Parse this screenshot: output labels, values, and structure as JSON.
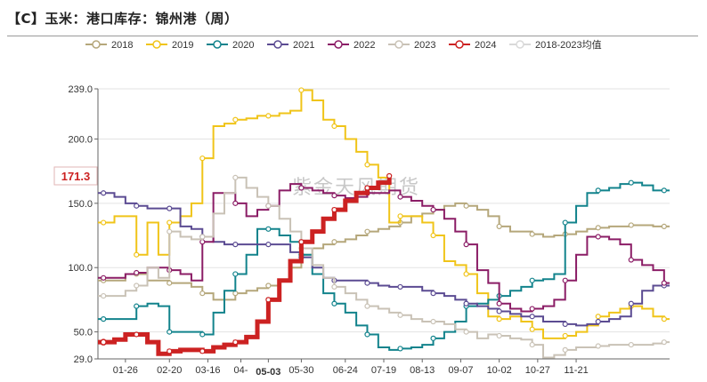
{
  "title": "【C】玉米：港口库存：锦州港（周）",
  "watermark": "紫金天风期货",
  "chart_data": {
    "type": "line",
    "title": "【C】玉米：港口库存：锦州港（周）",
    "ylim": [
      29,
      239
    ],
    "y_ticks": [
      "29.0",
      "50.0",
      "100.0",
      "150.0",
      "200.0",
      "239.0"
    ],
    "y_tick_values": [
      29,
      50,
      100,
      150,
      200,
      239
    ],
    "x_ticks": [
      "01-26",
      "02-20",
      "03-16",
      "04-",
      "05-03",
      "05-30",
      "06-24",
      "07-19",
      "08-13",
      "09-07",
      "10-02",
      "10-27",
      "11-21"
    ],
    "x_tick_weeks": [
      2,
      6,
      9.5,
      12.5,
      15,
      18,
      22,
      25.5,
      29,
      32.5,
      36,
      39.5,
      43
    ],
    "highlight_x_tick": "05-03",
    "n_weeks": 52,
    "callout": {
      "label": "171.3",
      "value": 171.3
    },
    "legend": [
      "2018",
      "2019",
      "2020",
      "2021",
      "2022",
      "2023",
      "2024",
      "2018-2023均值"
    ],
    "series": [
      {
        "name": "2018",
        "color": "#b5a77b",
        "values": [
          90,
          90,
          95,
          95,
          90,
          90,
          88,
          88,
          85,
          80,
          75,
          75,
          80,
          82,
          84,
          86,
          90,
          100,
          110,
          115,
          118,
          120,
          122,
          125,
          128,
          130,
          132,
          135,
          140,
          142,
          145,
          148,
          150,
          148,
          145,
          140,
          132,
          128,
          128,
          126,
          124,
          125,
          126,
          128,
          130,
          131,
          132,
          132,
          133,
          133,
          132,
          132
        ]
      },
      {
        "name": "2019",
        "color": "#f0c419",
        "values": [
          135,
          140,
          140,
          110,
          135,
          110,
          135,
          140,
          150,
          185,
          210,
          212,
          215,
          216,
          218,
          218,
          220,
          222,
          238,
          230,
          215,
          210,
          200,
          190,
          180,
          170,
          135,
          140,
          140,
          135,
          125,
          105,
          102,
          95,
          80,
          62,
          60,
          62,
          58,
          52,
          45,
          45,
          47,
          50,
          55,
          62,
          65,
          68,
          70,
          68,
          62,
          60
        ]
      },
      {
        "name": "2020",
        "color": "#12838c",
        "values": [
          60,
          60,
          60,
          70,
          72,
          70,
          50,
          50,
          50,
          48,
          65,
          82,
          95,
          110,
          130,
          130,
          125,
          120,
          110,
          95,
          80,
          72,
          65,
          55,
          48,
          38,
          36,
          37,
          38,
          40,
          45,
          50,
          58,
          70,
          72,
          75,
          78,
          82,
          85,
          90,
          91,
          95,
          135,
          148,
          158,
          160,
          162,
          165,
          166,
          164,
          160,
          160
        ]
      },
      {
        "name": "2021",
        "color": "#5b4b92",
        "values": [
          158,
          155,
          150,
          148,
          146,
          146,
          146,
          132,
          130,
          124,
          120,
          118,
          118,
          118,
          118,
          118,
          118,
          112,
          108,
          100,
          92,
          90,
          90,
          90,
          88,
          86,
          85,
          85,
          85,
          82,
          80,
          78,
          75,
          72,
          70,
          68,
          66,
          64,
          62,
          62,
          58,
          58,
          56,
          55,
          56,
          58,
          60,
          62,
          72,
          82,
          86,
          86
        ]
      },
      {
        "name": "2022",
        "color": "#8b1d66",
        "values": [
          92,
          92,
          95,
          96,
          100,
          100,
          98,
          95,
          90,
          120,
          158,
          158,
          150,
          140,
          145,
          148,
          160,
          165,
          162,
          160,
          158,
          156,
          154,
          155,
          158,
          158,
          160,
          155,
          152,
          148,
          145,
          138,
          128,
          118,
          98,
          88,
          72,
          68,
          66,
          68,
          70,
          75,
          90,
          110,
          124,
          124,
          122,
          118,
          106,
          102,
          98,
          88
        ]
      },
      {
        "name": "2023",
        "color": "#c9c2b6",
        "values": [
          78,
          78,
          82,
          86,
          100,
          92,
          128,
          124,
          122,
          124,
          142,
          158,
          170,
          162,
          155,
          148,
          138,
          128,
          115,
          102,
          92,
          85,
          80,
          75,
          70,
          68,
          65,
          63,
          60,
          58,
          58,
          56,
          52,
          50,
          45,
          48,
          47,
          45,
          44,
          40,
          30,
          32,
          36,
          38,
          38,
          39,
          40,
          40,
          40,
          40,
          41,
          42
        ]
      },
      {
        "name": "2024",
        "color": "#cc2222",
        "values": [
          42,
          44,
          48,
          48,
          42,
          33,
          35,
          36,
          36,
          35,
          38,
          40,
          42,
          46,
          58,
          75,
          90,
          105,
          120,
          128,
          138,
          145,
          152,
          158,
          162,
          166,
          171.3
        ]
      },
      {
        "name": "2018-2023均值",
        "color": "#d9d9d9",
        "values": []
      }
    ]
  }
}
